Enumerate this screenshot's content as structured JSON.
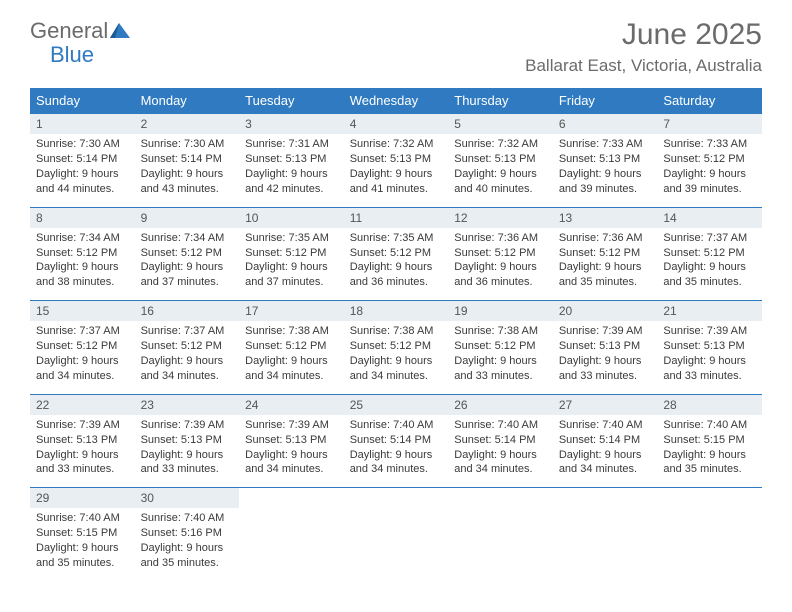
{
  "logo": {
    "general": "General",
    "blue": "Blue"
  },
  "title": "June 2025",
  "location": "Ballarat East, Victoria, Australia",
  "colors": {
    "header_bg": "#2f7ac0",
    "header_text": "#ffffff",
    "daynum_bg": "#e9eef3",
    "text": "#3a3a3a",
    "logo_gray": "#6b6b6b",
    "logo_blue": "#2f7ac0",
    "border": "#2f7ac0",
    "background": "#ffffff"
  },
  "fonts": {
    "title_size": 30,
    "location_size": 17,
    "weekday_size": 13,
    "cell_size": 11,
    "daynum_size": 12
  },
  "weekdays": [
    "Sunday",
    "Monday",
    "Tuesday",
    "Wednesday",
    "Thursday",
    "Friday",
    "Saturday"
  ],
  "days": [
    {
      "n": "1",
      "sr": "Sunrise: 7:30 AM",
      "ss": "Sunset: 5:14 PM",
      "d1": "Daylight: 9 hours",
      "d2": "and 44 minutes."
    },
    {
      "n": "2",
      "sr": "Sunrise: 7:30 AM",
      "ss": "Sunset: 5:14 PM",
      "d1": "Daylight: 9 hours",
      "d2": "and 43 minutes."
    },
    {
      "n": "3",
      "sr": "Sunrise: 7:31 AM",
      "ss": "Sunset: 5:13 PM",
      "d1": "Daylight: 9 hours",
      "d2": "and 42 minutes."
    },
    {
      "n": "4",
      "sr": "Sunrise: 7:32 AM",
      "ss": "Sunset: 5:13 PM",
      "d1": "Daylight: 9 hours",
      "d2": "and 41 minutes."
    },
    {
      "n": "5",
      "sr": "Sunrise: 7:32 AM",
      "ss": "Sunset: 5:13 PM",
      "d1": "Daylight: 9 hours",
      "d2": "and 40 minutes."
    },
    {
      "n": "6",
      "sr": "Sunrise: 7:33 AM",
      "ss": "Sunset: 5:13 PM",
      "d1": "Daylight: 9 hours",
      "d2": "and 39 minutes."
    },
    {
      "n": "7",
      "sr": "Sunrise: 7:33 AM",
      "ss": "Sunset: 5:12 PM",
      "d1": "Daylight: 9 hours",
      "d2": "and 39 minutes."
    },
    {
      "n": "8",
      "sr": "Sunrise: 7:34 AM",
      "ss": "Sunset: 5:12 PM",
      "d1": "Daylight: 9 hours",
      "d2": "and 38 minutes."
    },
    {
      "n": "9",
      "sr": "Sunrise: 7:34 AM",
      "ss": "Sunset: 5:12 PM",
      "d1": "Daylight: 9 hours",
      "d2": "and 37 minutes."
    },
    {
      "n": "10",
      "sr": "Sunrise: 7:35 AM",
      "ss": "Sunset: 5:12 PM",
      "d1": "Daylight: 9 hours",
      "d2": "and 37 minutes."
    },
    {
      "n": "11",
      "sr": "Sunrise: 7:35 AM",
      "ss": "Sunset: 5:12 PM",
      "d1": "Daylight: 9 hours",
      "d2": "and 36 minutes."
    },
    {
      "n": "12",
      "sr": "Sunrise: 7:36 AM",
      "ss": "Sunset: 5:12 PM",
      "d1": "Daylight: 9 hours",
      "d2": "and 36 minutes."
    },
    {
      "n": "13",
      "sr": "Sunrise: 7:36 AM",
      "ss": "Sunset: 5:12 PM",
      "d1": "Daylight: 9 hours",
      "d2": "and 35 minutes."
    },
    {
      "n": "14",
      "sr": "Sunrise: 7:37 AM",
      "ss": "Sunset: 5:12 PM",
      "d1": "Daylight: 9 hours",
      "d2": "and 35 minutes."
    },
    {
      "n": "15",
      "sr": "Sunrise: 7:37 AM",
      "ss": "Sunset: 5:12 PM",
      "d1": "Daylight: 9 hours",
      "d2": "and 34 minutes."
    },
    {
      "n": "16",
      "sr": "Sunrise: 7:37 AM",
      "ss": "Sunset: 5:12 PM",
      "d1": "Daylight: 9 hours",
      "d2": "and 34 minutes."
    },
    {
      "n": "17",
      "sr": "Sunrise: 7:38 AM",
      "ss": "Sunset: 5:12 PM",
      "d1": "Daylight: 9 hours",
      "d2": "and 34 minutes."
    },
    {
      "n": "18",
      "sr": "Sunrise: 7:38 AM",
      "ss": "Sunset: 5:12 PM",
      "d1": "Daylight: 9 hours",
      "d2": "and 34 minutes."
    },
    {
      "n": "19",
      "sr": "Sunrise: 7:38 AM",
      "ss": "Sunset: 5:12 PM",
      "d1": "Daylight: 9 hours",
      "d2": "and 33 minutes."
    },
    {
      "n": "20",
      "sr": "Sunrise: 7:39 AM",
      "ss": "Sunset: 5:13 PM",
      "d1": "Daylight: 9 hours",
      "d2": "and 33 minutes."
    },
    {
      "n": "21",
      "sr": "Sunrise: 7:39 AM",
      "ss": "Sunset: 5:13 PM",
      "d1": "Daylight: 9 hours",
      "d2": "and 33 minutes."
    },
    {
      "n": "22",
      "sr": "Sunrise: 7:39 AM",
      "ss": "Sunset: 5:13 PM",
      "d1": "Daylight: 9 hours",
      "d2": "and 33 minutes."
    },
    {
      "n": "23",
      "sr": "Sunrise: 7:39 AM",
      "ss": "Sunset: 5:13 PM",
      "d1": "Daylight: 9 hours",
      "d2": "and 33 minutes."
    },
    {
      "n": "24",
      "sr": "Sunrise: 7:39 AM",
      "ss": "Sunset: 5:13 PM",
      "d1": "Daylight: 9 hours",
      "d2": "and 34 minutes."
    },
    {
      "n": "25",
      "sr": "Sunrise: 7:40 AM",
      "ss": "Sunset: 5:14 PM",
      "d1": "Daylight: 9 hours",
      "d2": "and 34 minutes."
    },
    {
      "n": "26",
      "sr": "Sunrise: 7:40 AM",
      "ss": "Sunset: 5:14 PM",
      "d1": "Daylight: 9 hours",
      "d2": "and 34 minutes."
    },
    {
      "n": "27",
      "sr": "Sunrise: 7:40 AM",
      "ss": "Sunset: 5:14 PM",
      "d1": "Daylight: 9 hours",
      "d2": "and 34 minutes."
    },
    {
      "n": "28",
      "sr": "Sunrise: 7:40 AM",
      "ss": "Sunset: 5:15 PM",
      "d1": "Daylight: 9 hours",
      "d2": "and 35 minutes."
    },
    {
      "n": "29",
      "sr": "Sunrise: 7:40 AM",
      "ss": "Sunset: 5:15 PM",
      "d1": "Daylight: 9 hours",
      "d2": "and 35 minutes."
    },
    {
      "n": "30",
      "sr": "Sunrise: 7:40 AM",
      "ss": "Sunset: 5:16 PM",
      "d1": "Daylight: 9 hours",
      "d2": "and 35 minutes."
    }
  ],
  "layout": {
    "first_weekday_index": 0,
    "rows": 5,
    "cols": 7
  }
}
